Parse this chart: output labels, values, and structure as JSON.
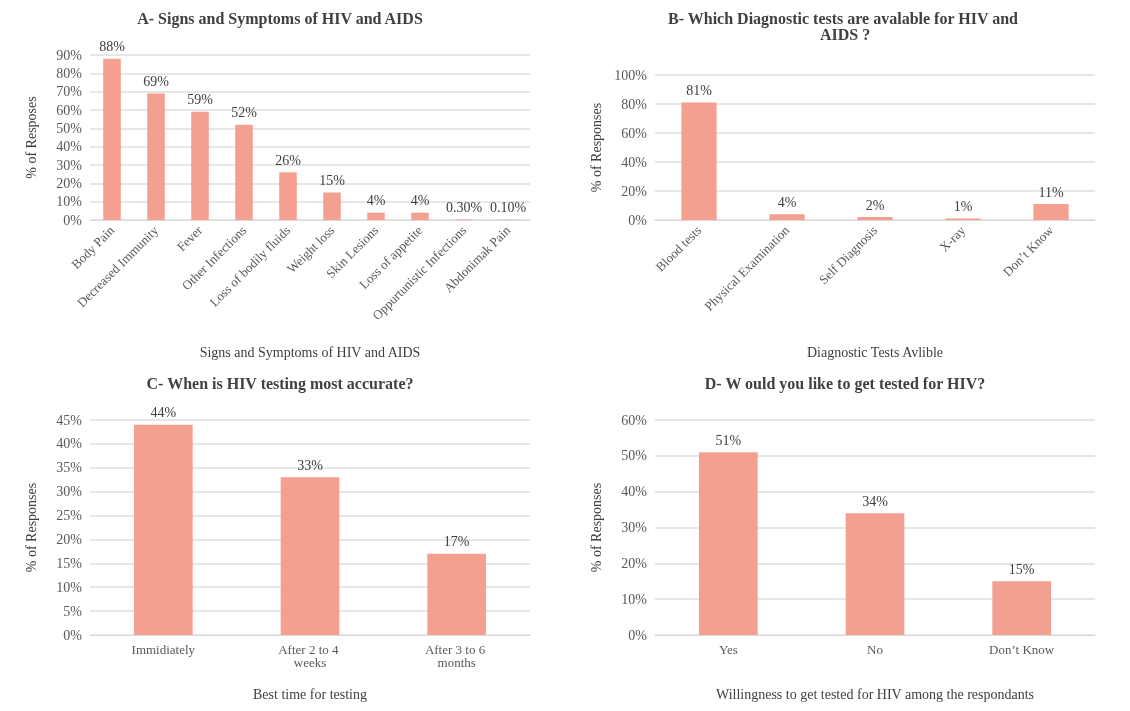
{
  "chart_data": [
    {
      "type": "bar",
      "title": "A- Signs and Symptoms of HIV and AIDS",
      "xlabel": "Signs and Symptoms of HIV and AIDS",
      "ylabel": "% of Resposes",
      "categories": [
        "Body Pain",
        "Decreased Immunity",
        "Fever",
        "Other Infections",
        "Loss of bodily fluids",
        "Weight loss",
        "Skin Lesions",
        "Loss of appetite",
        "Oppurtunistic Infections",
        "Abdonimak Pain"
      ],
      "values": [
        88,
        69,
        59,
        52,
        26,
        15,
        4,
        4,
        0.3,
        0.1
      ],
      "value_labels": [
        "88%",
        "69%",
        "59%",
        "52%",
        "26%",
        "15%",
        "4%",
        "4%",
        "0.30%",
        "0.10%"
      ],
      "color": "#f4a090",
      "ylim": [
        0,
        90
      ],
      "yticks": [
        {
          "value": 0,
          "label": "0%"
        },
        {
          "value": 10,
          "label": "10%"
        },
        {
          "value": 20,
          "label": "20%"
        },
        {
          "value": 30,
          "label": "30%"
        },
        {
          "value": 40,
          "label": "40%"
        },
        {
          "value": 50,
          "label": "50%"
        },
        {
          "value": 60,
          "label": "60%"
        },
        {
          "value": 70,
          "label": "70%"
        },
        {
          "value": 80,
          "label": "80%"
        },
        {
          "value": 90,
          "label": "90%"
        }
      ],
      "grid": "y"
    },
    {
      "type": "bar",
      "title": "B- Which Diagnostic tests are avalable for HIV and AIDS ?",
      "xlabel": "Diagnostic Tests Avlible",
      "ylabel": "% of Responses",
      "categories": [
        "Blood tests",
        "Physical Examination",
        "Self Diagnosis",
        "X-ray",
        "Don’t Know"
      ],
      "values": [
        81,
        4,
        2,
        1,
        11
      ],
      "value_labels": [
        "81%",
        "4%",
        "2%",
        "1%",
        "11%"
      ],
      "color": "#f4a090",
      "ylim": [
        0,
        100
      ],
      "yticks": [
        {
          "value": 0,
          "label": "0%"
        },
        {
          "value": 20,
          "label": "20%"
        },
        {
          "value": 40,
          "label": "40%"
        },
        {
          "value": 60,
          "label": "60%"
        },
        {
          "value": 80,
          "label": "80%"
        },
        {
          "value": 100,
          "label": "100%"
        }
      ],
      "grid": "y"
    },
    {
      "type": "bar",
      "title": "C- When is HIV testing most accurate?",
      "xlabel": "Best time for testing",
      "ylabel": "% of Responses",
      "categories": [
        "Immidiately",
        "After 2 to 4 weeks",
        "After 3 to 6 months"
      ],
      "values": [
        44,
        33,
        17
      ],
      "value_labels": [
        "44%",
        "33%",
        "17%"
      ],
      "color": "#f4a090",
      "ylim": [
        0,
        45
      ],
      "yticks": [
        {
          "value": 0,
          "label": "0%"
        },
        {
          "value": 5,
          "label": "5%"
        },
        {
          "value": 10,
          "label": "10%"
        },
        {
          "value": 15,
          "label": "15%"
        },
        {
          "value": 20,
          "label": "20%"
        },
        {
          "value": 25,
          "label": "25%"
        },
        {
          "value": 30,
          "label": "30%"
        },
        {
          "value": 35,
          "label": "35%"
        },
        {
          "value": 40,
          "label": "40%"
        },
        {
          "value": 45,
          "label": "45%"
        }
      ],
      "grid": "y"
    },
    {
      "type": "bar",
      "title": "D- W ould you like to get tested for HIV?",
      "xlabel": "Willingness to get tested for HIV among the respondants",
      "ylabel": "% of Responses",
      "categories": [
        "Yes",
        "No",
        "Don’t Know"
      ],
      "values": [
        51,
        34,
        15
      ],
      "value_labels": [
        "51%",
        "34%",
        "15%"
      ],
      "color": "#f4a090",
      "ylim": [
        0,
        60
      ],
      "yticks": [
        {
          "value": 0,
          "label": "0%"
        },
        {
          "value": 10,
          "label": "10%"
        },
        {
          "value": 20,
          "label": "20%"
        },
        {
          "value": 30,
          "label": "30%"
        },
        {
          "value": 40,
          "label": "40%"
        },
        {
          "value": 50,
          "label": "50%"
        },
        {
          "value": 60,
          "label": "60%"
        }
      ],
      "grid": "y"
    }
  ]
}
